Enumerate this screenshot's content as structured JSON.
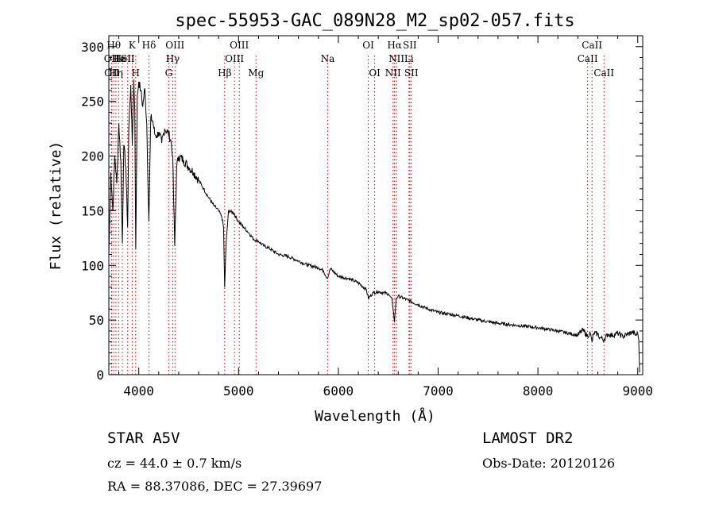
{
  "chart_data": {
    "type": "line",
    "title": "spec-55953-GAC_089N28_M2_sp02-057.fits",
    "xlabel": "Wavelength (Å)",
    "ylabel": "Flux (relative)",
    "xlim": [
      3700,
      9050
    ],
    "ylim": [
      0,
      310
    ],
    "xticks": [
      4000,
      5000,
      6000,
      7000,
      8000,
      9000
    ],
    "yticks": [
      0,
      50,
      100,
      150,
      200,
      250,
      300
    ],
    "grid": false,
    "line_color": "#000000",
    "marker_color": "#cc0000",
    "series": [
      {
        "x": [
          3700,
          3720,
          3740,
          3760,
          3780,
          3800,
          3820,
          3835,
          3850,
          3870,
          3889,
          3900,
          3920,
          3935,
          3950,
          3960,
          3970,
          3985,
          4000,
          4020,
          4040,
          4060,
          4080,
          4101,
          4120,
          4140,
          4160,
          4180,
          4200,
          4230,
          4260,
          4290,
          4320,
          4340,
          4360,
          4380,
          4400,
          4450,
          4500,
          4550,
          4600,
          4650,
          4700,
          4750,
          4800,
          4830,
          4850,
          4861,
          4875,
          4900,
          4950,
          5000,
          5050,
          5100,
          5150,
          5200,
          5250,
          5300,
          5400,
          5500,
          5600,
          5700,
          5800,
          5850,
          5890,
          5920,
          6000,
          6100,
          6200,
          6280,
          6300,
          6350,
          6400,
          6500,
          6540,
          6563,
          6580,
          6600,
          6700,
          6800,
          6900,
          7000,
          7200,
          7400,
          7600,
          7800,
          8000,
          8200,
          8400,
          8450,
          8498,
          8520,
          8542,
          8560,
          8600,
          8620,
          8662,
          8700,
          8750,
          8800,
          8850,
          8900,
          8950,
          8980,
          9000,
          9010,
          9020
        ],
        "values": [
          110,
          185,
          150,
          200,
          175,
          230,
          195,
          120,
          210,
          190,
          135,
          225,
          265,
          210,
          270,
          240,
          115,
          255,
          268,
          260,
          245,
          262,
          230,
          140,
          235,
          232,
          220,
          218,
          222,
          212,
          225,
          222,
          215,
          200,
          118,
          190,
          200,
          196,
          190,
          185,
          178,
          170,
          162,
          155,
          150,
          145,
          135,
          80,
          120,
          150,
          148,
          140,
          135,
          130,
          124,
          122,
          118,
          116,
          110,
          108,
          104,
          100,
          98,
          95,
          88,
          97,
          90,
          88,
          84,
          78,
          70,
          75,
          76,
          74,
          68,
          48,
          70,
          72,
          68,
          64,
          60,
          57,
          54,
          50,
          47,
          45,
          43,
          40,
          36,
          41,
          35,
          39,
          30,
          38,
          37,
          34,
          32,
          37,
          36,
          38,
          35,
          37,
          39,
          36,
          38,
          32,
          2
        ],
        "lines": [
          {
            "x": 3727,
            "label": "OII",
            "row": 2
          },
          {
            "x": 3730,
            "label": "OII",
            "row": 3
          },
          {
            "x": 3750,
            "label": "Hθ",
            "row": 1
          },
          {
            "x": 3771,
            "label": "Hη",
            "row": 3
          },
          {
            "x": 3798,
            "label": "He",
            "row": 2
          },
          {
            "x": 3835,
            "label": "HeI",
            "row": 2
          },
          {
            "x": 3889,
            "label": "SII",
            "row": 2
          },
          {
            "x": 3934,
            "label": "K",
            "row": 1
          },
          {
            "x": 3969,
            "label": "H",
            "row": 3
          },
          {
            "x": 4102,
            "label": "Hδ",
            "row": 1
          },
          {
            "x": 4300,
            "label": "G",
            "row": 3
          },
          {
            "x": 4340,
            "label": "Hγ",
            "row": 2
          },
          {
            "x": 4363,
            "label": "OIII",
            "row": 1
          },
          {
            "x": 4861,
            "label": "Hβ",
            "row": 3
          },
          {
            "x": 4959,
            "label": "OIII",
            "row": 2
          },
          {
            "x": 5007,
            "label": "OIII",
            "row": 1
          },
          {
            "x": 5175,
            "label": "Mg",
            "row": 3
          },
          {
            "x": 5893,
            "label": "Na",
            "row": 2
          },
          {
            "x": 6300,
            "label": "OI",
            "row": 1
          },
          {
            "x": 6364,
            "label": "OI",
            "row": 3
          },
          {
            "x": 6548,
            "label": "NII",
            "row": 3
          },
          {
            "x": 6563,
            "label": "Hα",
            "row": 1
          },
          {
            "x": 6583,
            "label": "NII",
            "row": 2
          },
          {
            "x": 6708,
            "label": "Li",
            "row": 2
          },
          {
            "x": 6716,
            "label": "SII",
            "row": 1
          },
          {
            "x": 6731,
            "label": "SII",
            "row": 3
          },
          {
            "x": 8498,
            "label": "CaII",
            "row": 2
          },
          {
            "x": 8542,
            "label": "CaII",
            "row": 1
          },
          {
            "x": 8662,
            "label": "CaII",
            "row": 3
          }
        ]
      }
    ]
  },
  "info": {
    "object": "STAR    A5V",
    "survey": "LAMOST  DR2",
    "velocity": "cz = 44.0 ± 0.7 km/s",
    "obs_date": "Obs-Date: 20120126",
    "coords": "RA =  88.37086, DEC =  27.39697"
  }
}
